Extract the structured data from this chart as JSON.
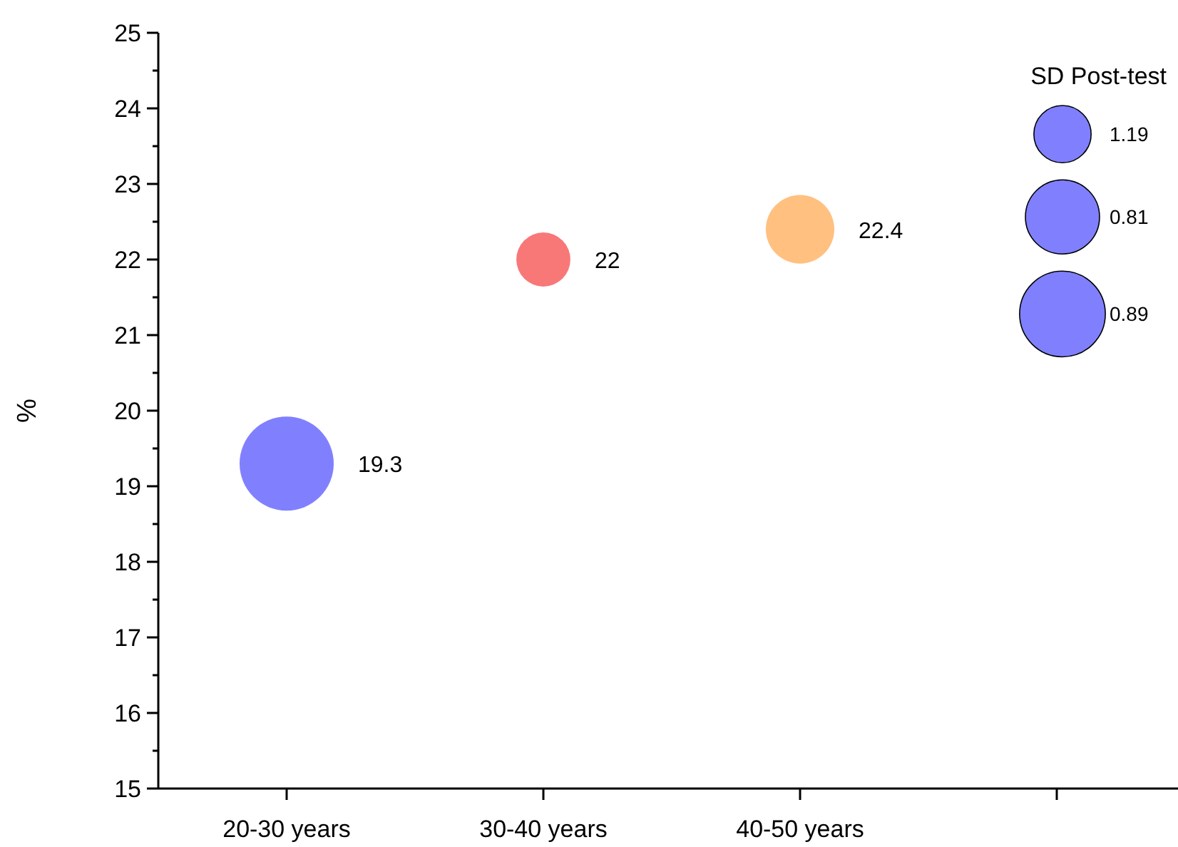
{
  "chart_data": {
    "type": "bubble",
    "ylabel": "%",
    "legend_title": "SD Post-test",
    "categories": [
      "20-30 years",
      "30-40 years",
      "40-50 years",
      null
    ],
    "values": [
      19.3,
      22,
      22.4,
      null
    ],
    "sizes": [
      1,
      0.33,
      0.53,
      null
    ],
    "colors": [
      "#8080ff",
      "#f87878",
      "#ffc080",
      null
    ],
    "size_legend": [
      {
        "value": 0.37,
        "label": "1.19"
      },
      {
        "value": 0.62,
        "label": "0.81"
      },
      {
        "value": 0.83,
        "label": "0.89"
      }
    ],
    "data_labels": true,
    "ylim": [
      15,
      25
    ],
    "yticks": [
      15,
      {
        "value": 15.5,
        "label": null
      },
      16,
      {
        "value": 16.5,
        "label": null
      },
      17,
      {
        "value": 17.5,
        "label": null
      },
      18,
      {
        "value": 18.5,
        "label": null
      },
      19,
      {
        "value": 19.5,
        "label": null
      },
      20,
      {
        "value": 20.5,
        "label": null
      },
      21,
      {
        "value": 21.5,
        "label": null
      },
      22,
      {
        "value": 22.5,
        "label": null
      },
      23,
      {
        "value": 23.5,
        "label": null
      },
      24,
      {
        "value": 24.5,
        "label": null
      },
      25
    ]
  }
}
